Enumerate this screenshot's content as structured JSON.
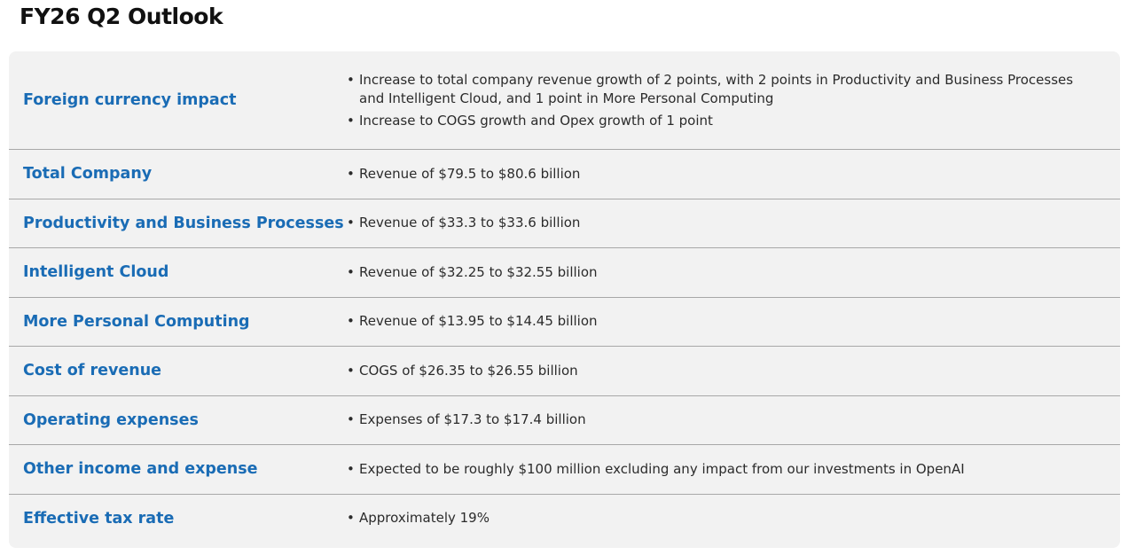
{
  "header": {
    "title": "FY26 Q2 Outlook"
  },
  "table": {
    "rows": [
      {
        "label": "Foreign currency impact",
        "bullets": [
          "Increase to total company revenue growth of 2 points, with 2 points in Productivity and Business Processes and Intelligent Cloud, and 1 point in More Personal Computing",
          "Increase to COGS growth and Opex growth of 1 point"
        ]
      },
      {
        "label": "Total Company",
        "bullets": [
          "Revenue of $79.5 to $80.6 billion"
        ]
      },
      {
        "label": "Productivity and Business Processes",
        "bullets": [
          "Revenue of $33.3 to $33.6 billion"
        ]
      },
      {
        "label": "Intelligent Cloud",
        "bullets": [
          "Revenue of $32.25 to $32.55 billion"
        ]
      },
      {
        "label": "More Personal Computing",
        "bullets": [
          "Revenue of $13.95 to $14.45 billion"
        ]
      },
      {
        "label": "Cost of revenue",
        "bullets": [
          "COGS of $26.35 to $26.55 billion"
        ]
      },
      {
        "label": "Operating expenses",
        "bullets": [
          "Expenses of $17.3 to $17.4 billion"
        ]
      },
      {
        "label": "Other income and expense",
        "bullets": [
          "Expected to be roughly $100 million excluding any impact from our investments in OpenAI"
        ]
      },
      {
        "label": "Effective tax rate",
        "bullets": [
          "Approximately 19%"
        ]
      }
    ]
  }
}
